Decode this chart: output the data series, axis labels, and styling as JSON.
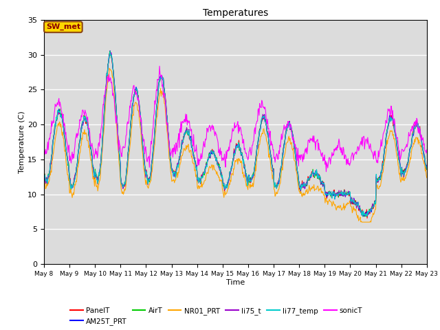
{
  "title": "Temperatures",
  "xlabel": "Time",
  "ylabel": "Temperature (C)",
  "ylim": [
    0,
    35
  ],
  "yticks": [
    0,
    5,
    10,
    15,
    20,
    25,
    30,
    35
  ],
  "annotation_text": "SW_met",
  "series_colors": {
    "PanelT": "#FF0000",
    "AM25T_PRT": "#0000FF",
    "AirT": "#00CC00",
    "NR01_PRT": "#FFA500",
    "li75_t": "#9900CC",
    "li77_temp": "#00CCCC",
    "sonicT": "#FF00FF"
  },
  "series_order": [
    "PanelT",
    "AM25T_PRT",
    "AirT",
    "NR01_PRT",
    "li75_t",
    "li77_temp",
    "sonicT"
  ],
  "background_color": "#DCDCDC",
  "n_days": 15,
  "start_day": 8,
  "figsize": [
    6.4,
    4.8
  ],
  "dpi": 100
}
